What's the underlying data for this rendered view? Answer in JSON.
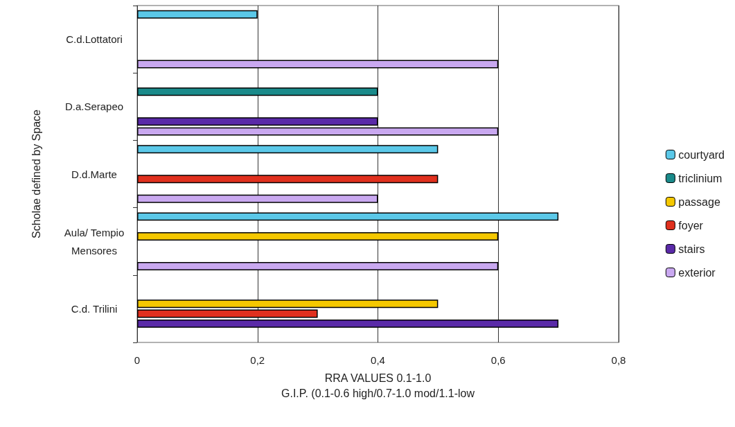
{
  "chart_data": {
    "type": "bar",
    "orientation": "horizontal",
    "xlabel": "RRA VALUES 0.1-1.0\nG.I.P. (0.1-0.6 high/0.7-1.0 mod/1.1-low",
    "ylabel": "Scholae defined by Space",
    "categories": [
      "C.d.Lottatori",
      "D.a.Serapeo",
      "D.d.Marte",
      "Aula/ Tempio\nMensores",
      "C.d. Trilini"
    ],
    "series": [
      {
        "name": "courtyard",
        "color": "#5bc8e8",
        "values": [
          0.2,
          null,
          0.5,
          0.7,
          null
        ]
      },
      {
        "name": "triclinium",
        "color": "#1a8a8a",
        "values": [
          null,
          0.4,
          null,
          null,
          null
        ]
      },
      {
        "name": "passage",
        "color": "#f5c800",
        "values": [
          null,
          null,
          null,
          0.6,
          0.5
        ]
      },
      {
        "name": "foyer",
        "color": "#e0301e",
        "values": [
          null,
          null,
          0.5,
          null,
          0.3
        ]
      },
      {
        "name": "stairs",
        "color": "#5a2aa8",
        "values": [
          null,
          0.4,
          null,
          null,
          0.7
        ]
      },
      {
        "name": "exterior",
        "color": "#c9a8f0",
        "values": [
          0.6,
          0.6,
          0.4,
          0.6,
          null
        ]
      }
    ],
    "xlim": [
      0,
      0.8
    ],
    "xticks": [
      0,
      {
        "value": 0.2,
        "label": "0,2"
      },
      {
        "value": 0.4,
        "label": "0,4"
      },
      {
        "value": 0.6,
        "label": "0,6"
      },
      {
        "value": 0.8,
        "label": "0,8"
      }
    ],
    "grid": "x",
    "legend": "right"
  }
}
